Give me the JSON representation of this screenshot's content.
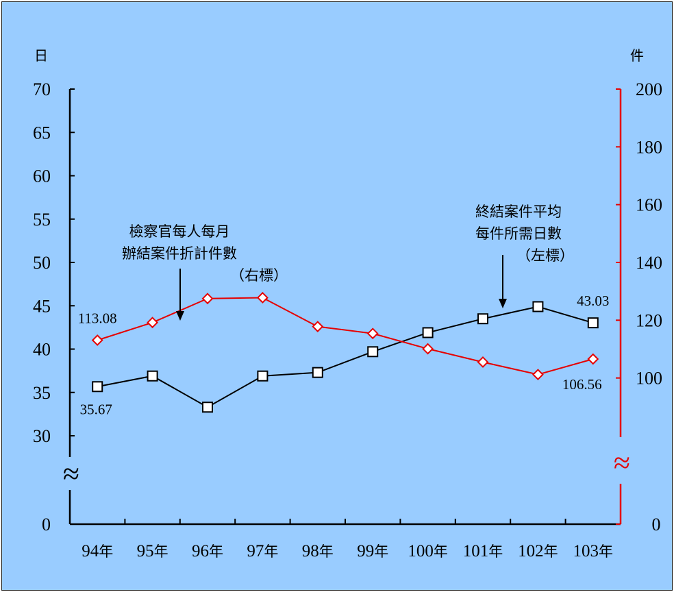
{
  "colors": {
    "background": "#99ccff",
    "left_axis": "#000000",
    "right_axis": "#e60000",
    "days_series": "#000000",
    "cases_series": "#e60000"
  },
  "chart_data": {
    "type": "line",
    "categories": [
      "94年",
      "95年",
      "96年",
      "97年",
      "98年",
      "99年",
      "100年",
      "101年",
      "102年",
      "103年"
    ],
    "left_axis": {
      "unit_label": "日",
      "ticks": [
        "0",
        "30",
        "35",
        "40",
        "45",
        "50",
        "55",
        "60",
        "65",
        "70"
      ],
      "range": [
        30,
        70
      ],
      "axis_break": true
    },
    "right_axis": {
      "unit_label": "件",
      "ticks": [
        "0",
        "100",
        "120",
        "140",
        "160",
        "180",
        "200"
      ],
      "range": [
        80,
        200
      ],
      "axis_break": true
    },
    "series": [
      {
        "id": "days",
        "axis": "left",
        "marker": "square",
        "values": [
          35.67,
          36.9,
          33.3,
          36.9,
          37.3,
          39.7,
          41.9,
          43.5,
          44.9,
          43.03
        ]
      },
      {
        "id": "cases",
        "axis": "right",
        "marker": "diamond",
        "values": [
          113.08,
          119.2,
          127.5,
          127.8,
          117.8,
          115.4,
          110.1,
          105.5,
          101.2,
          106.56
        ]
      }
    ],
    "data_labels": [
      {
        "series": "cases",
        "index": 0,
        "text": "113.08",
        "pos": "above"
      },
      {
        "series": "days",
        "index": 0,
        "text": "35.67",
        "pos": "below"
      },
      {
        "series": "days",
        "index": 9,
        "text": "43.03",
        "pos": "above"
      },
      {
        "series": "cases",
        "index": 9,
        "text": "106.56",
        "pos": "below-left"
      }
    ],
    "annotations": [
      {
        "series": "cases",
        "lines": [
          "檢察官每人每月",
          "辦結案件折計件數",
          "（右標）"
        ]
      },
      {
        "series": "days",
        "lines": [
          "終結案件平均",
          "每件所需日數",
          "（左標）"
        ]
      }
    ],
    "grid": false,
    "legend": "none"
  }
}
